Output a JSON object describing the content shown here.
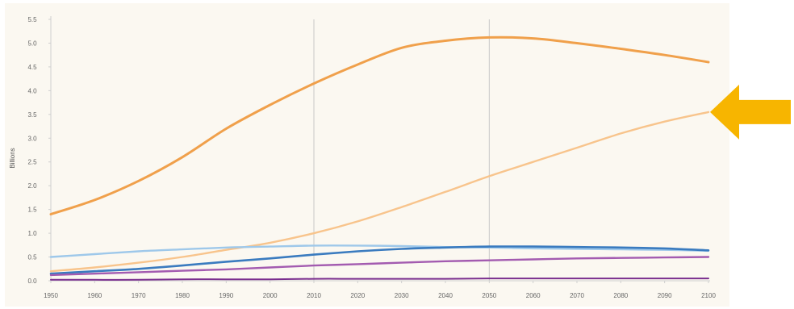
{
  "chart_data": {
    "type": "line",
    "title": "",
    "xlabel": "",
    "ylabel": "Billions",
    "xlim": [
      1950,
      2100
    ],
    "ylim": [
      0,
      5.5
    ],
    "x_ticks": [
      1950,
      1960,
      1970,
      1980,
      1990,
      2000,
      2010,
      2020,
      2030,
      2040,
      2050,
      2060,
      2070,
      2080,
      2090,
      2100
    ],
    "y_ticks": [
      0.0,
      0.5,
      1.0,
      1.5,
      2.0,
      2.5,
      3.0,
      3.5,
      4.0,
      4.5,
      5.0,
      5.5
    ],
    "vertical_gridlines": [
      2010,
      2050
    ],
    "legend": "none",
    "colors": {
      "background": "#fbf8f1",
      "axis": "#cfcfcf",
      "gridline": "#c8c8c8",
      "arrow": "#f7b500"
    },
    "annotation": {
      "type": "arrow-left",
      "points_to": {
        "x": 2100,
        "y": 3.55
      }
    },
    "series": [
      {
        "color": "#f0a04b",
        "width": 3.0,
        "x": [
          1950,
          1960,
          1970,
          1980,
          1990,
          2000,
          2010,
          2020,
          2030,
          2040,
          2050,
          2060,
          2070,
          2080,
          2090,
          2100
        ],
        "y": [
          1.4,
          1.7,
          2.1,
          2.6,
          3.2,
          3.7,
          4.15,
          4.55,
          4.9,
          5.05,
          5.12,
          5.1,
          5.0,
          4.88,
          4.75,
          4.6
        ]
      },
      {
        "color": "#f8c48c",
        "width": 2.4,
        "x": [
          1950,
          1960,
          1970,
          1980,
          1990,
          2000,
          2010,
          2020,
          2030,
          2040,
          2050,
          2060,
          2070,
          2080,
          2090,
          2100
        ],
        "y": [
          0.2,
          0.28,
          0.38,
          0.5,
          0.65,
          0.8,
          1.0,
          1.25,
          1.55,
          1.87,
          2.2,
          2.5,
          2.8,
          3.1,
          3.35,
          3.55
        ]
      },
      {
        "color": "#9ec8ea",
        "width": 2.4,
        "x": [
          1950,
          1960,
          1970,
          1980,
          1990,
          2000,
          2010,
          2020,
          2030,
          2040,
          2050,
          2060,
          2070,
          2080,
          2090,
          2100
        ],
        "y": [
          0.5,
          0.56,
          0.62,
          0.66,
          0.7,
          0.72,
          0.74,
          0.74,
          0.73,
          0.71,
          0.7,
          0.68,
          0.67,
          0.66,
          0.65,
          0.63
        ]
      },
      {
        "color": "#3a7bbf",
        "width": 2.6,
        "x": [
          1950,
          1960,
          1970,
          1980,
          1990,
          2000,
          2010,
          2020,
          2030,
          2040,
          2050,
          2060,
          2070,
          2080,
          2090,
          2100
        ],
        "y": [
          0.15,
          0.2,
          0.25,
          0.32,
          0.4,
          0.47,
          0.55,
          0.62,
          0.67,
          0.7,
          0.72,
          0.72,
          0.71,
          0.7,
          0.68,
          0.64
        ]
      },
      {
        "color": "#a35bb0",
        "width": 2.4,
        "x": [
          1950,
          1960,
          1970,
          1980,
          1990,
          2000,
          2010,
          2020,
          2030,
          2040,
          2050,
          2060,
          2070,
          2080,
          2090,
          2100
        ],
        "y": [
          0.12,
          0.15,
          0.18,
          0.21,
          0.24,
          0.28,
          0.32,
          0.35,
          0.38,
          0.41,
          0.43,
          0.45,
          0.47,
          0.48,
          0.49,
          0.5
        ]
      },
      {
        "color": "#7a2e8e",
        "width": 2.0,
        "x": [
          1950,
          1960,
          1970,
          1980,
          1990,
          2000,
          2010,
          2020,
          2030,
          2040,
          2050,
          2060,
          2070,
          2080,
          2090,
          2100
        ],
        "y": [
          0.02,
          0.02,
          0.02,
          0.03,
          0.03,
          0.03,
          0.04,
          0.04,
          0.04,
          0.04,
          0.05,
          0.05,
          0.05,
          0.05,
          0.05,
          0.05
        ]
      }
    ]
  }
}
